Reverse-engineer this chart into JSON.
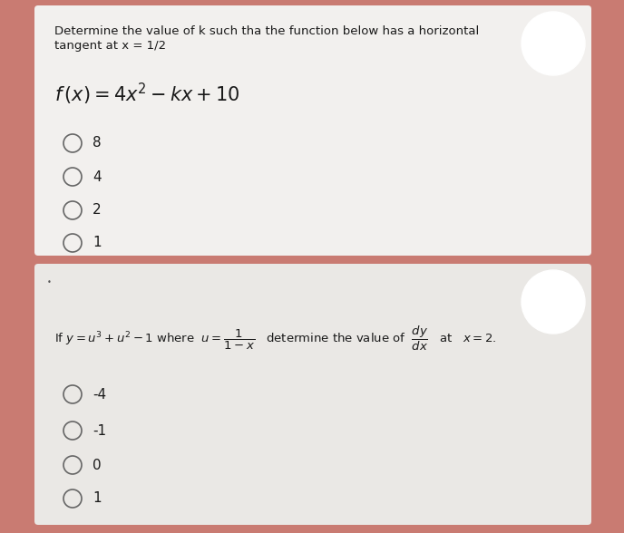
{
  "bg_color": "#c97b72",
  "card1_color": "#f2f0ee",
  "card2_color": "#eae8e5",
  "text_color": "#1a1a1a",
  "card1_title_line1": "Determine the value of k such tha the function below has a horizontal",
  "card1_title_line2": "tangent at x = 1/2",
  "card1_formula": "$f\\,(x) = 4x^2 - kx + 10$",
  "card1_options": [
    "8",
    "4",
    "2",
    "1"
  ],
  "card2_question": "If $y = u^3 + u^2 - 1$ where  $u = \\dfrac{1}{1-x}$   determine the value of  $\\dfrac{dy}{dx}$   at   $x = 2.$",
  "card2_options": [
    "-4",
    "-1",
    "0",
    "1"
  ],
  "font_size_title": 9.5,
  "font_size_formula": 15,
  "font_size_options": 11,
  "font_size_question": 9.5
}
